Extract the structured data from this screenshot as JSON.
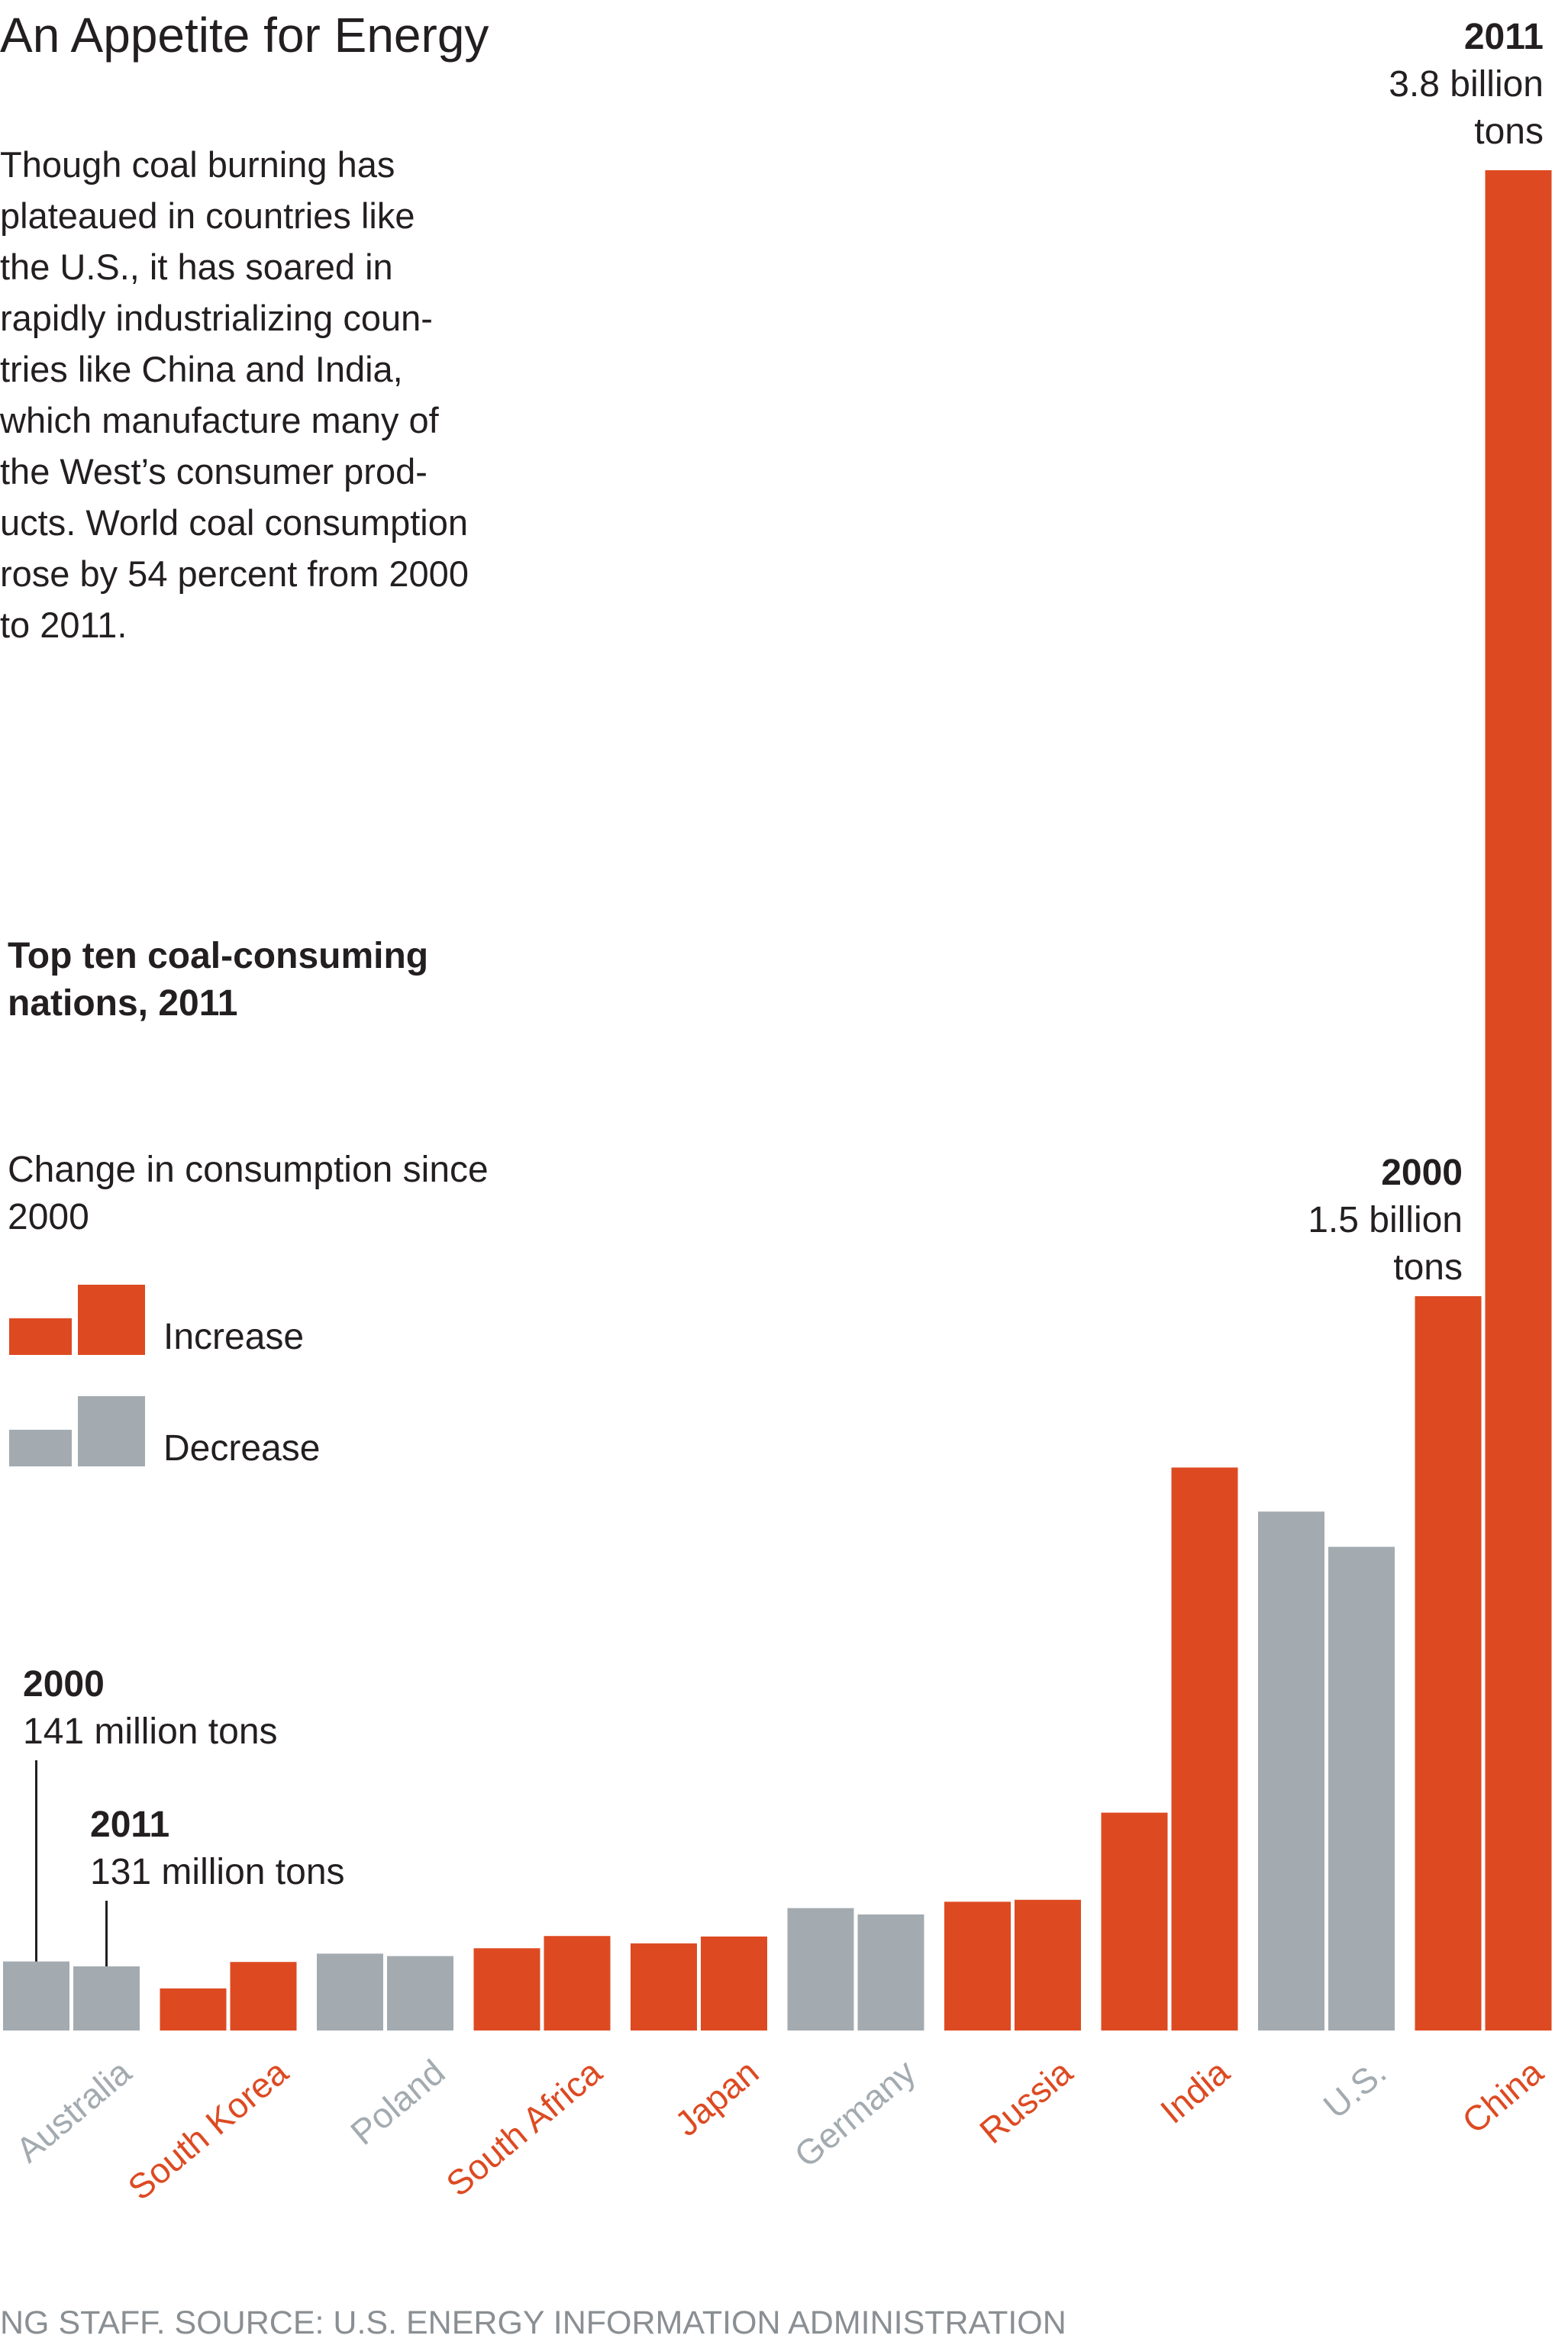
{
  "title": "An Appetite for Energy",
  "intro": "Though coal burning has\nplateaued in countries like\nthe U.S., it has soared in\nrapidly industrializing coun-\ntries like China and India,\nwhich manufacture many of\nthe West’s consumer prod-\nucts. World coal consumption\nrose by 54 percent from 2000\nto 2011.",
  "legend": {
    "title": "Change in consumption since 2000",
    "increase_label": "Increase",
    "decrease_label": "Decrease"
  },
  "colors": {
    "increase": "#dd4a22",
    "decrease": "#a3abb0",
    "text": "#231f20",
    "footer": "#8a8f93"
  },
  "footer": "NG STAFF. SOURCE: U.S. ENERGY INFORMATION ADMINISTRATION",
  "chart_data": {
    "type": "bar",
    "title": "Top ten coal-consuming nations, 2011",
    "xlabel": "",
    "ylabel": "",
    "unit": "million tons",
    "grid": false,
    "categories": [
      "Australia",
      "South Korea",
      "Poland",
      "South Africa",
      "Japan",
      "Germany",
      "Russia",
      "India",
      "U.S.",
      "China"
    ],
    "change": [
      "decrease",
      "increase",
      "decrease",
      "increase",
      "increase",
      "decrease",
      "increase",
      "increase",
      "decrease",
      "increase"
    ],
    "series": [
      {
        "name": "2000",
        "values": [
          141,
          86,
          157,
          168,
          178,
          250,
          263,
          445,
          1060,
          1500
        ]
      },
      {
        "name": "2011",
        "values": [
          131,
          140,
          152,
          193,
          192,
          237,
          267,
          1150,
          988,
          3800
        ]
      }
    ],
    "ylim": [
      0,
      3800
    ],
    "annotations": [
      {
        "category": "Australia",
        "series": "2000",
        "year": "2000",
        "value": "141 million tons"
      },
      {
        "category": "Australia",
        "series": "2011",
        "year": "2011",
        "value": "131 million tons"
      },
      {
        "category": "China",
        "series": "2000",
        "year": "2000",
        "value": "1.5 billion tons"
      },
      {
        "category": "China",
        "series": "2011",
        "year": "2011",
        "value": "3.8 billion tons"
      }
    ]
  }
}
